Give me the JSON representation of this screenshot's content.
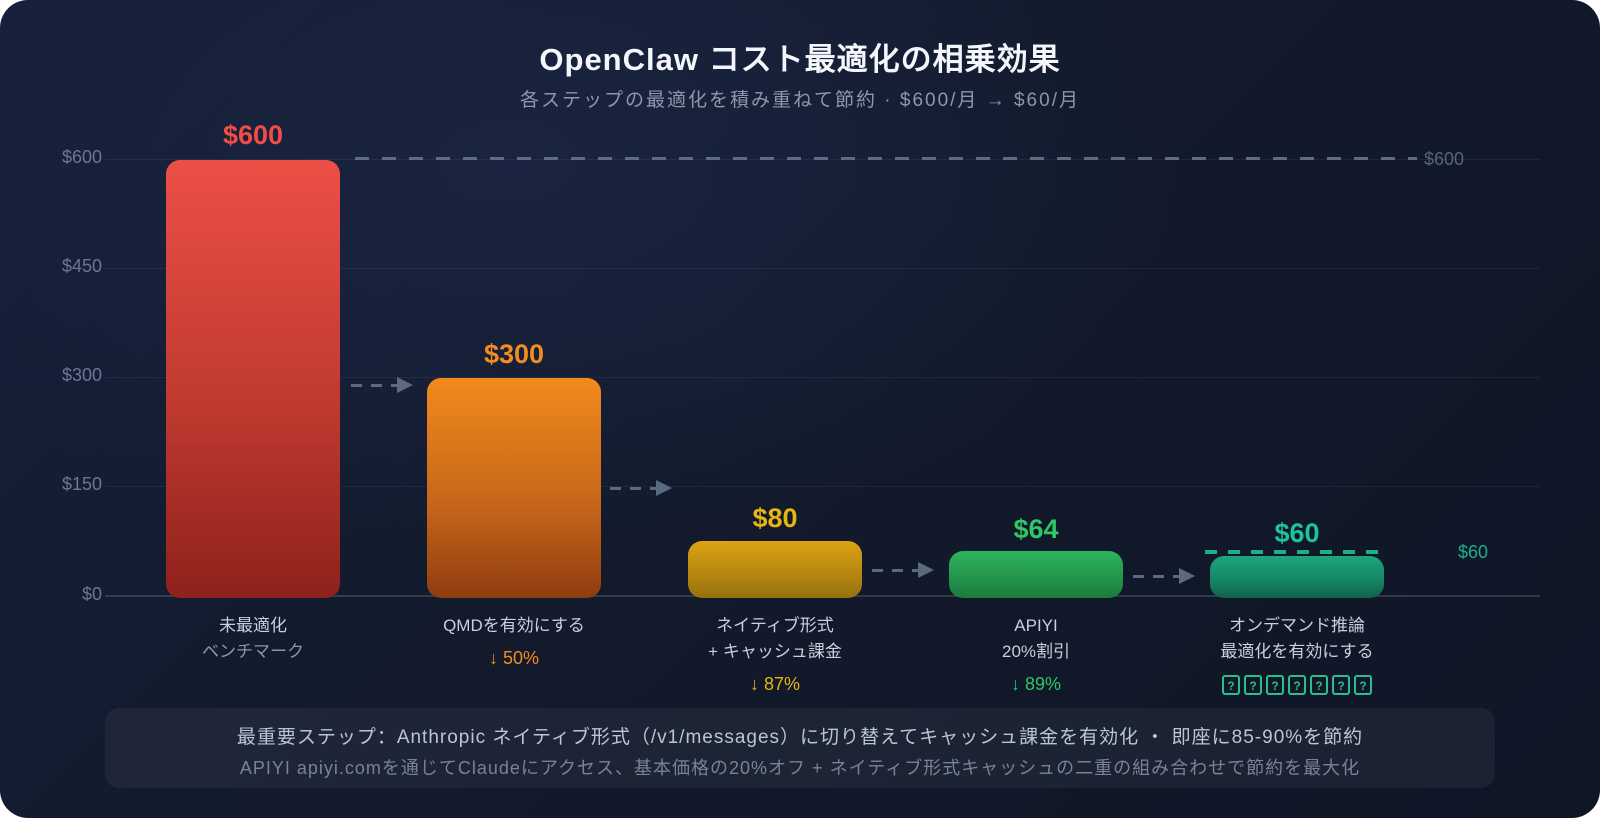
{
  "title": "OpenClaw コスト最適化の相乗効果",
  "subtitle": "各ステップの最適化を積み重ねて節約 · $600/月 → $60/月",
  "chart_data": {
    "type": "bar",
    "title": "OpenClaw コスト最適化の相乗効果",
    "subtitle": "各ステップの最適化を積み重ねて節約 · $600/月 → $60/月",
    "ylabel": "",
    "xlabel": "",
    "ylim": [
      0,
      600
    ],
    "unit": "$/月",
    "grid": true,
    "legend_position": "none",
    "yticks": [
      "$600",
      "$450",
      "$300",
      "$150",
      "$0"
    ],
    "categories": [
      "未最適化 ベンチマーク",
      "QMDを有効にする",
      "ネイティブ形式 + キャッシュ課金",
      "APIYI 20%割引",
      "オンデマンド推論 最適化を有効にする"
    ],
    "values": [
      600,
      300,
      80,
      64,
      60
    ],
    "bars": [
      {
        "value": 600,
        "value_label": "$600",
        "name_line1": "未最適化",
        "name_line2": "ベンチマーク",
        "delta": "",
        "color": "#ec4f46"
      },
      {
        "value": 300,
        "value_label": "$300",
        "name_line1": "QMDを有効にする",
        "name_line2": "",
        "delta": "↓ 50%",
        "color": "#f28a1d"
      },
      {
        "value": 80,
        "value_label": "$80",
        "name_line1": "ネイティブ形式",
        "name_line2": "+ キャッシュ課金",
        "delta": "↓ 87%",
        "color": "#dca313"
      },
      {
        "value": 64,
        "value_label": "$64",
        "name_line1": "APIYI",
        "name_line2": "20%割引",
        "delta": "↓ 89%",
        "color": "#2db45c"
      },
      {
        "value": 60,
        "value_label": "$60",
        "name_line1": "オンデマンド推論",
        "name_line2": "最適化を有効にする",
        "delta_tofu_char": "?",
        "delta_tofu_count": 7,
        "color": "#1da57d"
      }
    ],
    "reference_lines": [
      {
        "value": 600,
        "label": "$600",
        "color": "#56647a",
        "style": "dashed"
      },
      {
        "value": 60,
        "label": "$60",
        "color": "#1fae8b",
        "style": "dashed"
      }
    ]
  },
  "footer": {
    "line1": "最重要ステップ：Anthropic ネイティブ形式（/v1/messages）に切り替えてキャッシュ課金を有効化 ・ 即座に85-90%を節約",
    "line2": "APIYI apiyi.comを通じてClaudeにアクセス、基本価格の20%オフ + ネイティブ形式キャッシュの二重の組み合わせで節約を最大化"
  }
}
